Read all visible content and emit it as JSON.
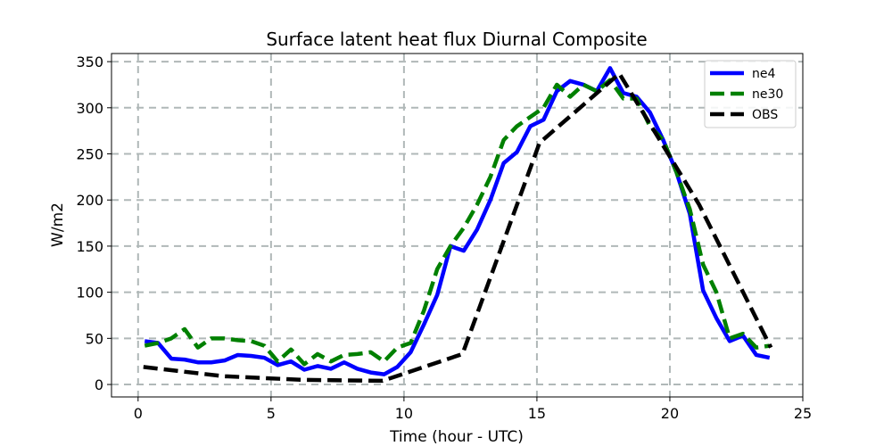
{
  "chart_data": {
    "type": "line",
    "title": "Surface latent heat flux Diurnal Composite",
    "xlabel": "Time (hour - UTC)",
    "ylabel": "W/m2",
    "xlim": [
      -1.0,
      25.0
    ],
    "ylim": [
      -13.5,
      358.8
    ],
    "xticks": [
      0,
      5,
      10,
      15,
      20,
      25
    ],
    "yticks": [
      0,
      50,
      100,
      150,
      200,
      250,
      300,
      350
    ],
    "grid": true,
    "legend_position": "top-right",
    "series": [
      {
        "name": "ne4",
        "color": "#0000ff",
        "style": "solid",
        "x": [
          0.25,
          0.75,
          1.25,
          1.75,
          2.25,
          2.75,
          3.25,
          3.75,
          4.25,
          4.75,
          5.25,
          5.75,
          6.25,
          6.75,
          7.25,
          7.75,
          8.25,
          8.75,
          9.25,
          9.75,
          10.25,
          10.75,
          11.25,
          11.75,
          12.25,
          12.75,
          13.25,
          13.75,
          14.25,
          14.75,
          15.25,
          15.75,
          16.25,
          16.75,
          17.25,
          17.75,
          18.25,
          18.75,
          19.25,
          19.75,
          20.25,
          20.75,
          21.25,
          21.75,
          22.25,
          22.75,
          23.25,
          23.75
        ],
        "y": [
          47,
          45,
          28,
          27,
          24,
          24,
          26,
          32,
          31,
          29,
          21,
          25,
          16,
          20,
          17,
          24,
          17,
          13,
          11,
          19,
          35,
          65,
          97,
          150,
          145,
          168,
          200,
          240,
          252,
          280,
          287,
          318,
          329,
          325,
          318,
          343,
          316,
          312,
          295,
          265,
          230,
          185,
          102,
          72,
          47,
          53,
          32,
          29
        ]
      },
      {
        "name": "ne30",
        "color": "#008000",
        "style": "dashed",
        "x": [
          0.25,
          0.75,
          1.25,
          1.75,
          2.25,
          2.75,
          3.25,
          3.75,
          4.25,
          4.75,
          5.25,
          5.75,
          6.25,
          6.75,
          7.25,
          7.75,
          8.25,
          8.75,
          9.25,
          9.75,
          10.25,
          10.75,
          11.25,
          11.75,
          12.25,
          12.75,
          13.25,
          13.75,
          14.25,
          14.75,
          15.25,
          15.75,
          16.25,
          16.75,
          17.25,
          17.75,
          18.25,
          18.75,
          19.25,
          19.75,
          20.25,
          20.75,
          21.25,
          21.75,
          22.25,
          22.75,
          23.25,
          23.75
        ],
        "y": [
          42,
          45,
          50,
          60,
          40,
          50,
          50,
          48,
          47,
          42,
          25,
          38,
          22,
          33,
          25,
          32,
          33,
          35,
          25,
          40,
          45,
          80,
          125,
          150,
          170,
          195,
          225,
          265,
          280,
          290,
          300,
          325,
          312,
          325,
          318,
          330,
          310,
          310,
          280,
          265,
          230,
          190,
          130,
          100,
          50,
          55,
          40,
          42
        ]
      },
      {
        "name": "OBS",
        "color": "#000000",
        "style": "dashed",
        "x": [
          0.2,
          3.2,
          6.2,
          9.2,
          12.2,
          15.1,
          18.1,
          21.1,
          23.8
        ],
        "y": [
          19,
          9,
          5,
          4,
          33,
          262,
          337,
          195,
          40
        ]
      }
    ]
  }
}
